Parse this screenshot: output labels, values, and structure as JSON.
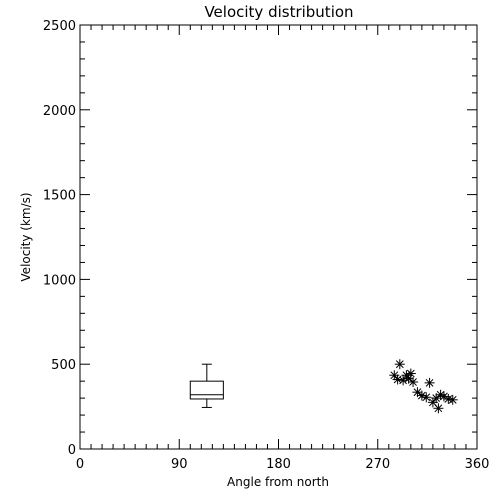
{
  "chart_data": {
    "type": "scatter",
    "title": "Velocity distribution",
    "xlabel": "Angle from north",
    "ylabel": "Velocity (km/s)",
    "xlim": [
      0,
      360
    ],
    "ylim": [
      0,
      2500
    ],
    "x_ticks": [
      0,
      90,
      180,
      270,
      360
    ],
    "y_ticks": [
      0,
      500,
      1000,
      1500,
      2000,
      2500
    ],
    "x_minor_step": 10,
    "y_minor_step": 100,
    "grid": false,
    "marker": "asterisk",
    "points": [
      {
        "x": 285,
        "y": 435
      },
      {
        "x": 288,
        "y": 410
      },
      {
        "x": 290,
        "y": 500
      },
      {
        "x": 293,
        "y": 405
      },
      {
        "x": 296,
        "y": 435
      },
      {
        "x": 298,
        "y": 415
      },
      {
        "x": 300,
        "y": 445
      },
      {
        "x": 302,
        "y": 395
      },
      {
        "x": 306,
        "y": 335
      },
      {
        "x": 310,
        "y": 315
      },
      {
        "x": 314,
        "y": 305
      },
      {
        "x": 317,
        "y": 390
      },
      {
        "x": 320,
        "y": 275
      },
      {
        "x": 323,
        "y": 300
      },
      {
        "x": 325,
        "y": 240
      },
      {
        "x": 327,
        "y": 320
      },
      {
        "x": 330,
        "y": 310
      },
      {
        "x": 334,
        "y": 295
      },
      {
        "x": 338,
        "y": 290
      }
    ],
    "boxplot": {
      "x_range": [
        100,
        130
      ],
      "min": 245,
      "q1": 295,
      "median": 320,
      "q3": 400,
      "max": 500
    }
  }
}
